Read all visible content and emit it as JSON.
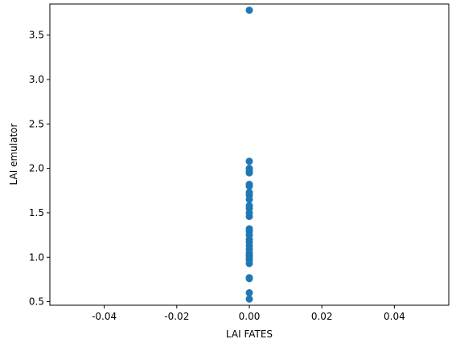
{
  "chart_data": {
    "type": "scatter",
    "title": "",
    "xlabel": "LAI FATES",
    "ylabel": "LAI emulator",
    "xlim": [
      -0.055,
      0.055
    ],
    "ylim": [
      0.46,
      3.85
    ],
    "x_ticks": [
      "-0.04",
      "-0.02",
      "0.00",
      "0.02",
      "0.04"
    ],
    "x_tick_values": [
      -0.04,
      -0.02,
      0.0,
      0.02,
      0.04
    ],
    "y_ticks": [
      "0.5",
      "1.0",
      "1.5",
      "2.0",
      "2.5",
      "3.0",
      "3.5"
    ],
    "y_tick_values": [
      0.5,
      1.0,
      1.5,
      2.0,
      2.5,
      3.0,
      3.5
    ],
    "grid": false,
    "legend": "none",
    "marker_color": "#1f77b4",
    "points": [
      {
        "x": 0.0,
        "y": 3.78
      },
      {
        "x": 0.0,
        "y": 2.08
      },
      {
        "x": 0.0,
        "y": 2.0
      },
      {
        "x": 0.0,
        "y": 1.97
      },
      {
        "x": 0.0,
        "y": 1.95
      },
      {
        "x": 0.0,
        "y": 1.82
      },
      {
        "x": 0.0,
        "y": 1.8
      },
      {
        "x": 0.0,
        "y": 1.73
      },
      {
        "x": 0.0,
        "y": 1.7
      },
      {
        "x": 0.0,
        "y": 1.65
      },
      {
        "x": 0.0,
        "y": 1.58
      },
      {
        "x": 0.0,
        "y": 1.55
      },
      {
        "x": 0.0,
        "y": 1.5
      },
      {
        "x": 0.0,
        "y": 1.46
      },
      {
        "x": 0.0,
        "y": 1.32
      },
      {
        "x": 0.0,
        "y": 1.29
      },
      {
        "x": 0.0,
        "y": 1.25
      },
      {
        "x": 0.0,
        "y": 1.2
      },
      {
        "x": 0.0,
        "y": 1.17
      },
      {
        "x": 0.0,
        "y": 1.13
      },
      {
        "x": 0.0,
        "y": 1.09
      },
      {
        "x": 0.0,
        "y": 1.05
      },
      {
        "x": 0.0,
        "y": 1.02
      },
      {
        "x": 0.0,
        "y": 1.0
      },
      {
        "x": 0.0,
        "y": 0.97
      },
      {
        "x": 0.0,
        "y": 0.93
      },
      {
        "x": 0.0,
        "y": 0.77
      },
      {
        "x": 0.0,
        "y": 0.76
      },
      {
        "x": 0.0,
        "y": 0.6
      },
      {
        "x": 0.0,
        "y": 0.53
      }
    ]
  }
}
